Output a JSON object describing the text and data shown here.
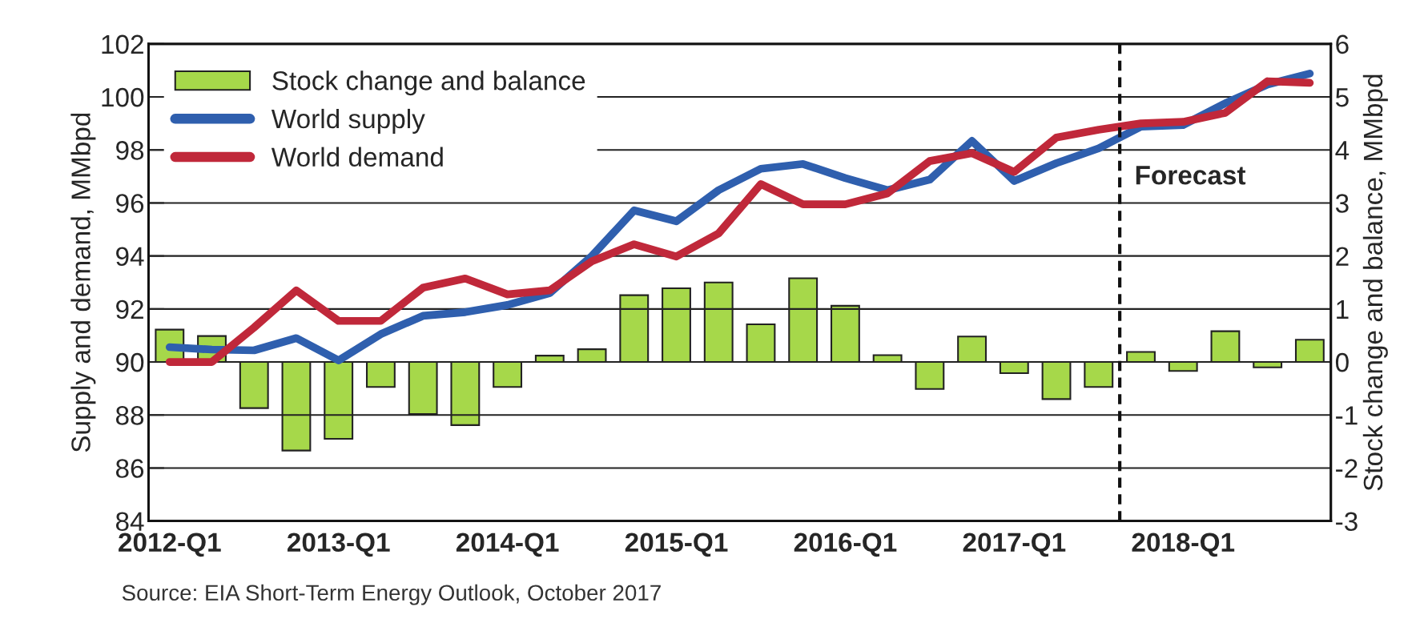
{
  "chart_data": {
    "type": "line",
    "categories": [
      "2012-Q1",
      null,
      null,
      null,
      "2013-Q1",
      null,
      null,
      null,
      "2014-Q1",
      null,
      null,
      null,
      "2015-Q1",
      null,
      null,
      null,
      "2016-Q1",
      null,
      null,
      null,
      "2017-Q1",
      null,
      null,
      null,
      "2018-Q1",
      null,
      null,
      null
    ],
    "series": [
      {
        "name": "Stock change and balance",
        "type": "bar",
        "axis": "y2",
        "color": "#a6d84a",
        "values": [
          0.61,
          0.49,
          -0.87,
          -1.67,
          -1.45,
          -0.47,
          -0.98,
          -1.19,
          -0.47,
          0.12,
          0.24,
          1.26,
          1.39,
          1.5,
          0.71,
          1.58,
          1.06,
          0.13,
          -0.51,
          0.48,
          -0.21,
          -0.7,
          -0.47,
          0.19,
          -0.17,
          0.58,
          -0.1,
          0.42
        ]
      },
      {
        "name": "World supply",
        "axis": "y",
        "color": "#2f5fae",
        "values": [
          90.56,
          90.47,
          90.44,
          90.9,
          90.06,
          91.05,
          91.74,
          91.88,
          92.15,
          92.6,
          94.0,
          95.72,
          95.31,
          96.48,
          97.29,
          97.47,
          96.94,
          96.48,
          96.88,
          98.34,
          96.83,
          97.5,
          98.06,
          98.88,
          98.94,
          99.76,
          100.47,
          100.88
        ]
      },
      {
        "name": "World demand",
        "axis": "y",
        "color": "#c0283a",
        "values": [
          90.0,
          90.0,
          91.3,
          92.7,
          91.55,
          91.55,
          92.8,
          93.15,
          92.55,
          92.7,
          93.8,
          94.44,
          93.98,
          94.85,
          96.71,
          95.95,
          95.95,
          96.36,
          97.58,
          97.88,
          97.17,
          98.47,
          98.76,
          99.0,
          99.06,
          99.4,
          100.59,
          100.53
        ]
      }
    ],
    "ylabel": "Supply and demand, MMbpd",
    "y2label": "Stock change and balance, MMbpd",
    "ylim": [
      84,
      102
    ],
    "yticks": [
      84,
      86,
      88,
      90,
      92,
      94,
      96,
      98,
      100,
      102
    ],
    "y2lim": [
      -3,
      6
    ],
    "y2ticks": [
      -3,
      -2,
      -1,
      0,
      1,
      2,
      3,
      4,
      5,
      6
    ],
    "annotations": [
      "Forecast",
      "Source: EIA Short-Term Energy Outlook, October 2017"
    ],
    "grid": "y",
    "legend": "top left"
  }
}
